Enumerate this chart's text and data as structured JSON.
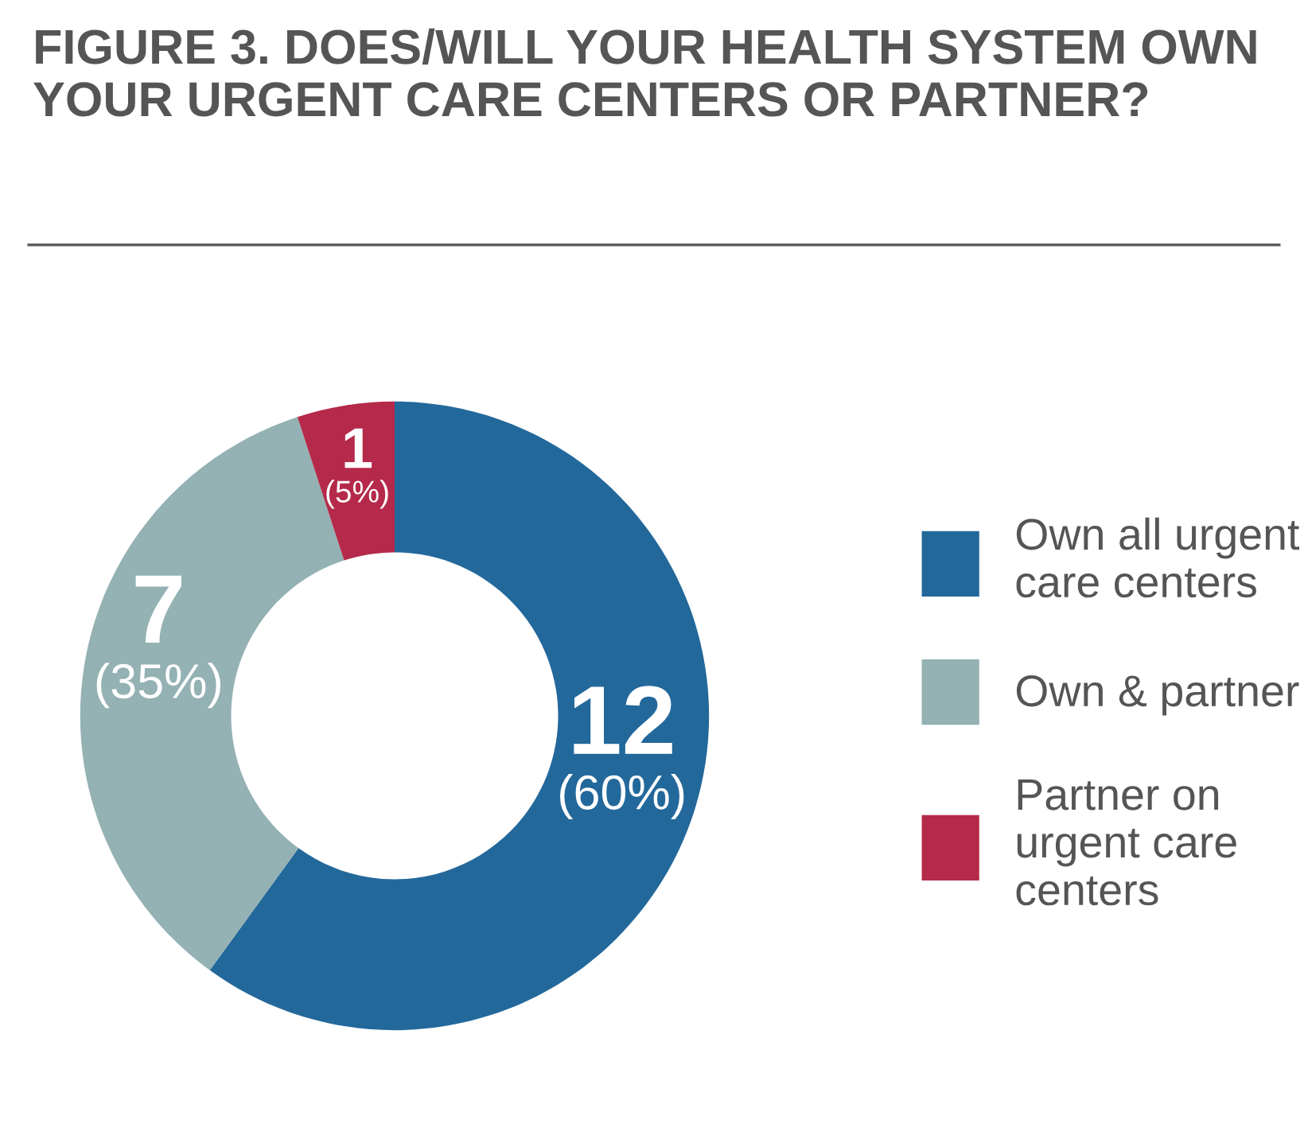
{
  "chart_data": {
    "type": "donut",
    "title": "FIGURE 3. DOES/WILL YOUR HEALTH SYSTEM OWN YOUR URGENT CARE CENTERS OR PARTNER?",
    "categories": [
      "Own all urgent care centers",
      "Own & partner",
      "Partner on urgent care centers"
    ],
    "values": [
      12,
      7,
      1
    ],
    "colors": [
      "#23689b",
      "#94b1b3",
      "#b5294a"
    ],
    "value_labels": [
      "12 (60%)",
      "7 (35%)",
      "1 (5%)"
    ],
    "legend": "right"
  }
}
